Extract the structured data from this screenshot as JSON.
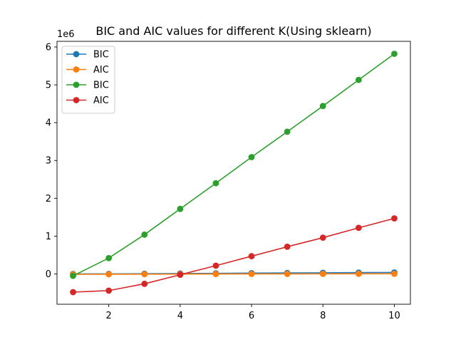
{
  "chart_data": {
    "type": "line",
    "title": "BIC and AIC values for different K(Using sklearn)",
    "xlabel": "",
    "ylabel": "",
    "y_multiplier_label": "1e6",
    "xlim": [
      0.55,
      10.45
    ],
    "ylim": [
      -800000.0,
      6150000.0
    ],
    "x_ticks": [
      2,
      4,
      6,
      8,
      10
    ],
    "y_ticks": [
      0,
      1000000,
      2000000,
      3000000,
      4000000,
      5000000,
      6000000
    ],
    "y_tick_labels": [
      "0",
      "1",
      "2",
      "3",
      "4",
      "5",
      "6"
    ],
    "x": [
      1,
      2,
      3,
      4,
      5,
      6,
      7,
      8,
      9,
      10
    ],
    "grid": false,
    "legend_position": "top-left",
    "series": [
      {
        "name": "BIC",
        "color": "#1f77b4",
        "values": [
          0,
          3000,
          7000,
          12000,
          17000,
          22000,
          27000,
          31000,
          36000,
          40000
        ]
      },
      {
        "name": "AIC",
        "color": "#ff7f0e",
        "values": [
          -10000,
          -8000,
          -5000,
          -3000,
          -1000,
          1000,
          2000,
          3000,
          4000,
          5000
        ]
      },
      {
        "name": "BIC",
        "color": "#2ca02c",
        "values": [
          -50000,
          420000,
          1040000,
          1720000,
          2400000,
          3090000,
          3760000,
          4440000,
          5130000,
          5820000
        ]
      },
      {
        "name": "AIC",
        "color": "#d62728",
        "values": [
          -480000,
          -440000,
          -260000,
          -20000,
          220000,
          470000,
          720000,
          960000,
          1220000,
          1470000
        ]
      }
    ]
  }
}
